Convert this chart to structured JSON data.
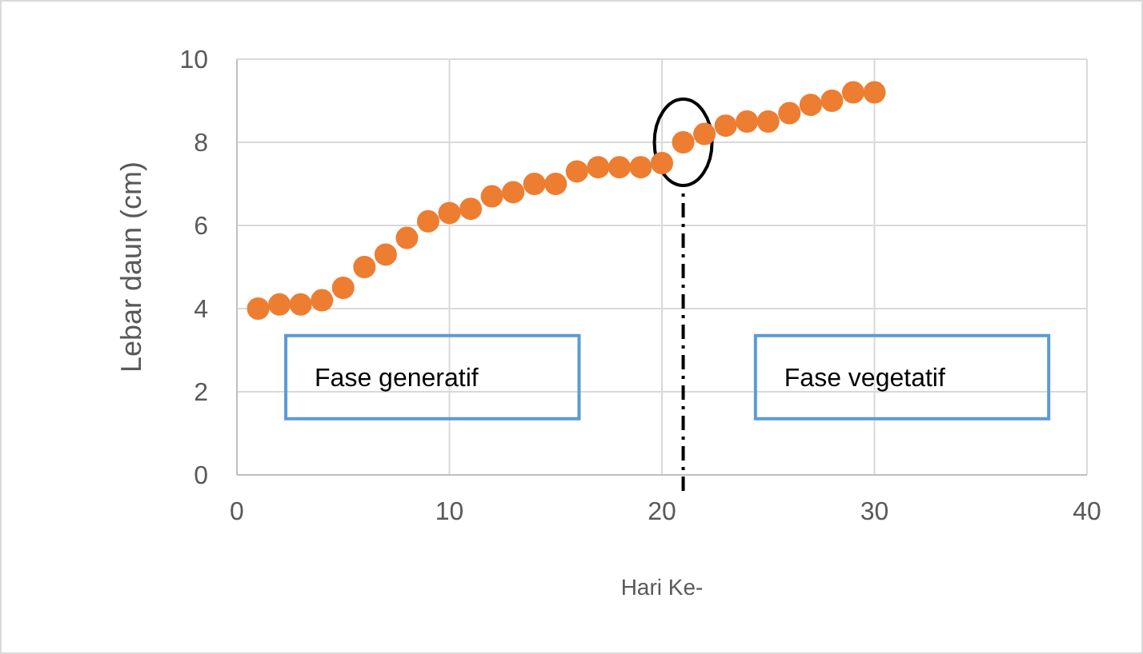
{
  "chart_data": {
    "type": "scatter",
    "xlabel": "Hari Ke-",
    "ylabel": "Lebar daun (cm)",
    "x": [
      1,
      2,
      3,
      4,
      5,
      6,
      7,
      8,
      9,
      10,
      11,
      12,
      13,
      14,
      15,
      16,
      17,
      18,
      19,
      20,
      21,
      22,
      23,
      24,
      25,
      26,
      27,
      28,
      29,
      30
    ],
    "series": [
      {
        "color": "#ed7d31",
        "values": [
          4.0,
          4.1,
          4.1,
          4.2,
          4.5,
          5.0,
          5.3,
          5.7,
          6.1,
          6.3,
          6.4,
          6.7,
          6.8,
          7.0,
          7.0,
          7.3,
          7.4,
          7.4,
          7.4,
          7.5,
          8.0,
          8.2,
          8.4,
          8.5,
          8.5,
          8.7,
          8.9,
          9.0,
          9.2,
          9.2
        ]
      }
    ],
    "xlim": [
      0,
      40
    ],
    "xticks": [
      0,
      10,
      20,
      30,
      40
    ],
    "ylim": [
      0,
      10
    ],
    "yticks": [
      0,
      2,
      4,
      6,
      8,
      10
    ],
    "grid": true,
    "marker": "circle",
    "ref_lines": [
      {
        "axis": "x",
        "value": 21,
        "color": "#000000",
        "line_style": "dashed"
      }
    ],
    "annotations": [
      "Fase generatif",
      "Fase vegetatif"
    ]
  }
}
